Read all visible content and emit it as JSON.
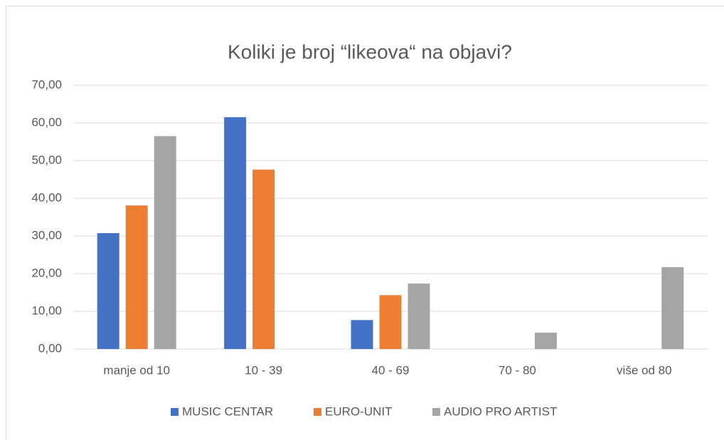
{
  "chart_data": {
    "type": "bar",
    "title": "Koliki je broj “likeova“ na objavi?",
    "categories": [
      "manje od 10",
      "10 - 39",
      "40 - 69",
      "70 - 80",
      "više od 80"
    ],
    "series": [
      {
        "name": "MUSIC CENTAR",
        "color": "#4472c4",
        "values": [
          30.77,
          61.54,
          7.69,
          0,
          0
        ]
      },
      {
        "name": "EURO-UNIT",
        "color": "#ed7d31",
        "values": [
          38.1,
          47.62,
          14.29,
          0,
          0
        ]
      },
      {
        "name": "AUDIO PRO ARTIST",
        "color": "#a5a5a5",
        "values": [
          56.52,
          0,
          17.39,
          4.35,
          21.74
        ]
      }
    ],
    "ylim": [
      0,
      70
    ],
    "yticks": [
      {
        "value": 0,
        "label": "0,00"
      },
      {
        "value": 10,
        "label": "10,00"
      },
      {
        "value": 20,
        "label": "20,00"
      },
      {
        "value": 30,
        "label": "30,00"
      },
      {
        "value": 40,
        "label": "40,00"
      },
      {
        "value": 50,
        "label": "50,00"
      },
      {
        "value": 60,
        "label": "60,00"
      },
      {
        "value": 70,
        "label": "70,00"
      }
    ],
    "grid": true,
    "legend": "bottom"
  }
}
